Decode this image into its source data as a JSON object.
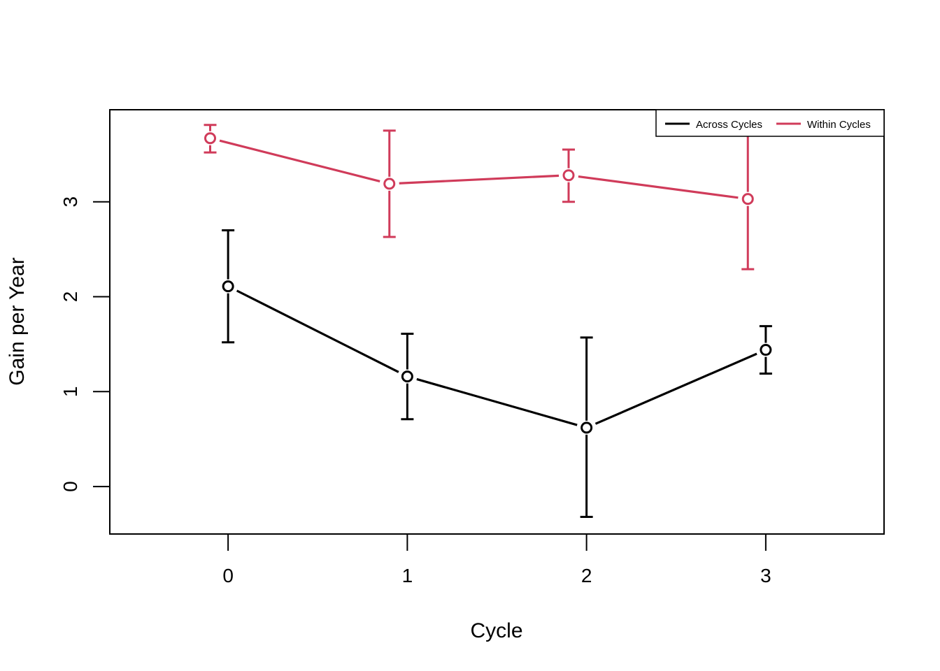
{
  "chart_data": {
    "type": "line",
    "title": "",
    "xlabel": "Cycle",
    "ylabel": "Gain per Year",
    "x_ticks": [
      "0",
      "1",
      "2",
      "3"
    ],
    "y_ticks": [
      "0",
      "1",
      "2",
      "3"
    ],
    "xlim": [
      -0.66,
      3.66
    ],
    "ylim": [
      -0.5,
      3.97
    ],
    "grid": false,
    "legend_position": "top-right",
    "series": [
      {
        "name": "Across Cycles",
        "color": "#000000",
        "x": [
          0,
          1,
          2,
          3
        ],
        "y": [
          2.11,
          1.16,
          0.62,
          1.44
        ],
        "lower": [
          1.52,
          0.71,
          -0.32,
          1.19
        ],
        "upper": [
          2.7,
          1.61,
          1.57,
          1.69
        ]
      },
      {
        "name": "Within Cycles",
        "color": "#D03B5A",
        "x": [
          -0.1,
          0.9,
          1.9,
          2.9
        ],
        "y": [
          3.67,
          3.19,
          3.28,
          3.03
        ],
        "lower": [
          3.52,
          2.63,
          3.0,
          2.29
        ],
        "upper": [
          3.81,
          3.75,
          3.55,
          3.77
        ]
      }
    ]
  }
}
